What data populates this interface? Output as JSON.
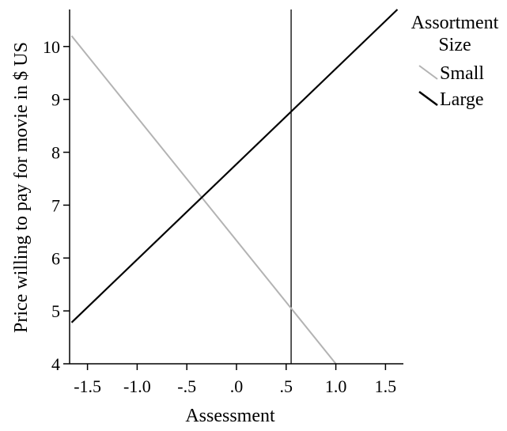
{
  "chart_data": {
    "type": "line",
    "title": "",
    "xlabel": "Assessment",
    "ylabel": "Price willing to pay for movie in $ US",
    "xlim": [
      -1.68,
      1.68
    ],
    "ylim": [
      4,
      10.7
    ],
    "x_ticks": [
      {
        "value": -1.5,
        "label": "-1.5"
      },
      {
        "value": -1.0,
        "label": "-1.0"
      },
      {
        "value": -0.5,
        "label": "-.5"
      },
      {
        "value": 0.0,
        "label": ".0"
      },
      {
        "value": 0.5,
        "label": ".5"
      },
      {
        "value": 1.0,
        "label": "1.0"
      },
      {
        "value": 1.5,
        "label": "1.5"
      }
    ],
    "y_ticks": [
      {
        "value": 4,
        "label": "4"
      },
      {
        "value": 5,
        "label": "5"
      },
      {
        "value": 6,
        "label": "6"
      },
      {
        "value": 7,
        "label": "7"
      },
      {
        "value": 8,
        "label": "8"
      },
      {
        "value": 9,
        "label": "9"
      },
      {
        "value": 10,
        "label": "10"
      }
    ],
    "reference_line_x": 0.55,
    "legend_title": [
      "Assortment",
      "Size"
    ],
    "legend_position": "top-right",
    "grid": false,
    "series": [
      {
        "name": "Small",
        "color": "#b3b3b3",
        "x": [
          -1.66,
          1.0
        ],
        "y": [
          10.2,
          4.0
        ]
      },
      {
        "name": "Large",
        "color": "#000000",
        "x": [
          -1.66,
          1.62
        ],
        "y": [
          4.78,
          10.7
        ]
      }
    ]
  }
}
